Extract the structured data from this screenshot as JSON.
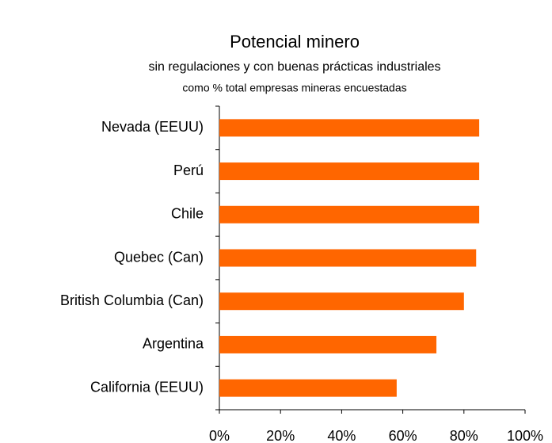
{
  "chart_data": {
    "type": "bar",
    "orientation": "horizontal",
    "title": "Potencial minero",
    "subtitle": "sin regulaciones y con buenas prácticas industriales",
    "subtitle2": "como % total empresas mineras encuestadas",
    "categories": [
      "Nevada (EEUU)",
      "Perú",
      "Chile",
      "Quebec  (Can)",
      "British Columbia (Can)",
      "Argentina",
      "California (EEUU)"
    ],
    "values": [
      85,
      85,
      85,
      84,
      80,
      71,
      58
    ],
    "color": "#ff6600",
    "xlim": [
      0,
      100
    ],
    "xticks": [
      {
        "value": 0,
        "label": "0%"
      },
      {
        "value": 20,
        "label": "20%"
      },
      {
        "value": 40,
        "label": "40%"
      },
      {
        "value": 60,
        "label": "60%"
      },
      {
        "value": 80,
        "label": "80%"
      },
      {
        "value": 100,
        "label": "100%"
      }
    ],
    "grid": false
  }
}
